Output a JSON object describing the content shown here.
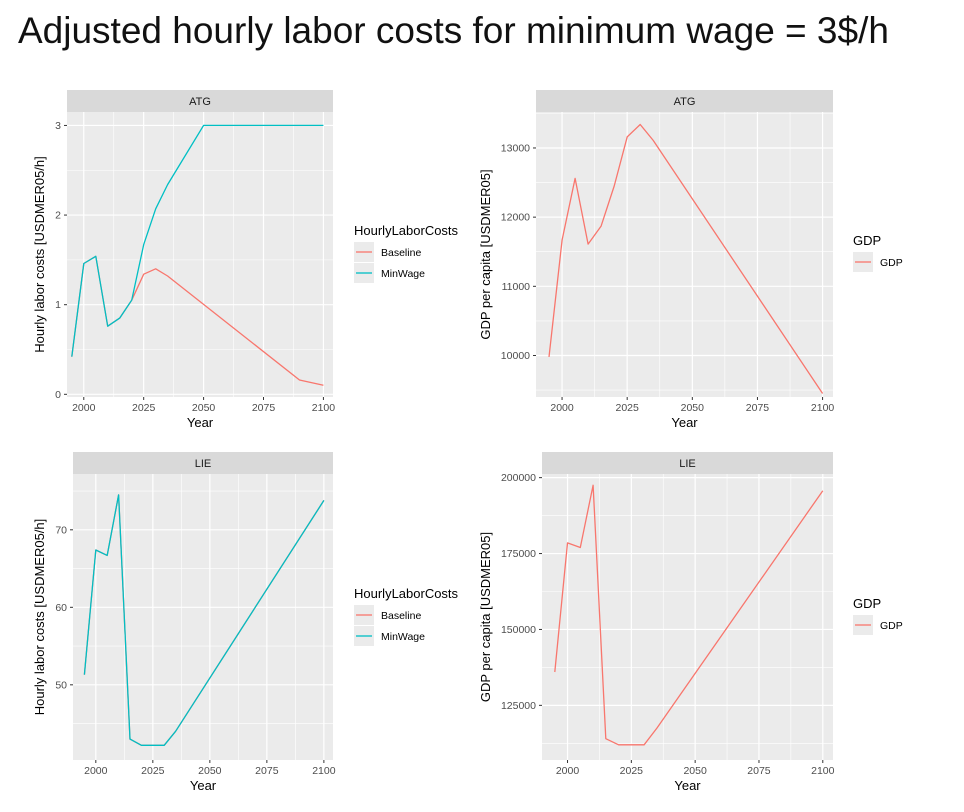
{
  "title": "Adjusted hourly labor costs for minimum wage = 3$/h",
  "colors": {
    "baseline": "#F8766D",
    "minwage": "#00BFC4",
    "gdp": "#F8766D",
    "panel_bg": "#EBEBEB",
    "strip_bg": "#D9D9D9",
    "grid": "#FFFFFF"
  },
  "chart_data": [
    {
      "type": "line",
      "facet": "ATG",
      "xlabel": "Year",
      "ylabel": "Hourly labor costs [USDMER05/h]",
      "xlim": [
        1993,
        2104
      ],
      "ylim": [
        -0.03,
        3.15
      ],
      "x_ticks": [
        2000,
        2025,
        2050,
        2075,
        2100
      ],
      "y_ticks": [
        0,
        1,
        2,
        3
      ],
      "legend_title": "HourlyLaborCosts",
      "legend_entries": [
        "Baseline",
        "MinWage"
      ],
      "series": [
        {
          "name": "Baseline",
          "color": "#F8766D",
          "x": [
            1995,
            2000,
            2005,
            2010,
            2015,
            2020,
            2025,
            2030,
            2035,
            2090,
            2100
          ],
          "y": [
            0.42,
            1.46,
            1.54,
            0.76,
            0.85,
            1.05,
            1.34,
            1.4,
            1.32,
            0.16,
            0.1
          ]
        },
        {
          "name": "MinWage",
          "color": "#00BFC4",
          "x": [
            1995,
            2000,
            2005,
            2010,
            2015,
            2020,
            2025,
            2030,
            2035,
            2050,
            2100
          ],
          "y": [
            0.42,
            1.46,
            1.54,
            0.76,
            0.85,
            1.05,
            1.67,
            2.07,
            2.34,
            3.0,
            3.0
          ]
        }
      ]
    },
    {
      "type": "line",
      "facet": "ATG",
      "xlabel": "Year",
      "ylabel": "GDP per capita [USDMER05]",
      "xlim": [
        1990,
        2104
      ],
      "ylim": [
        9400,
        13520
      ],
      "x_ticks": [
        2000,
        2025,
        2050,
        2075,
        2100
      ],
      "y_ticks": [
        10000,
        11000,
        12000,
        13000
      ],
      "legend_title": "GDP",
      "legend_entries": [
        "GDP"
      ],
      "series": [
        {
          "name": "GDP",
          "color": "#F8766D",
          "x": [
            1995,
            2000,
            2005,
            2010,
            2015,
            2020,
            2025,
            2030,
            2035,
            2100
          ],
          "y": [
            9980,
            11670,
            12560,
            11610,
            11870,
            12450,
            13160,
            13340,
            13110,
            9450
          ]
        }
      ]
    },
    {
      "type": "line",
      "facet": "LIE",
      "xlabel": "Year",
      "ylabel": "Hourly labor costs [USDMER05/h]",
      "xlim": [
        1990,
        2104
      ],
      "ylim": [
        40.3,
        77.2
      ],
      "x_ticks": [
        2000,
        2025,
        2050,
        2075,
        2100
      ],
      "y_ticks": [
        50,
        60,
        70
      ],
      "legend_title": "HourlyLaborCosts",
      "legend_entries": [
        "Baseline",
        "MinWage"
      ],
      "series": [
        {
          "name": "Baseline",
          "color": "#F8766D",
          "x": [
            1995,
            2000,
            2005,
            2010,
            2015,
            2020,
            2030,
            2035,
            2100
          ],
          "y": [
            51.3,
            67.4,
            66.7,
            74.5,
            43.0,
            42.2,
            42.2,
            44.0,
            73.8
          ]
        },
        {
          "name": "MinWage",
          "color": "#00BFC4",
          "x": [
            1995,
            2000,
            2005,
            2010,
            2015,
            2020,
            2030,
            2035,
            2100
          ],
          "y": [
            51.3,
            67.4,
            66.7,
            74.5,
            43.0,
            42.2,
            42.2,
            44.0,
            73.8
          ]
        }
      ]
    },
    {
      "type": "line",
      "facet": "LIE",
      "xlabel": "Year",
      "ylabel": "GDP per capita [USDMER05]",
      "xlim": [
        1990,
        2104
      ],
      "ylim": [
        107000,
        201200
      ],
      "x_ticks": [
        2000,
        2025,
        2050,
        2075,
        2100
      ],
      "y_ticks": [
        125000,
        150000,
        175000,
        200000
      ],
      "legend_title": "GDP",
      "legend_entries": [
        "GDP"
      ],
      "series": [
        {
          "name": "GDP",
          "color": "#F8766D",
          "x": [
            1995,
            2000,
            2005,
            2010,
            2015,
            2020,
            2030,
            2035,
            2100
          ],
          "y": [
            136000,
            178500,
            177000,
            197500,
            114000,
            112000,
            112000,
            117500,
            195700
          ]
        }
      ]
    }
  ]
}
